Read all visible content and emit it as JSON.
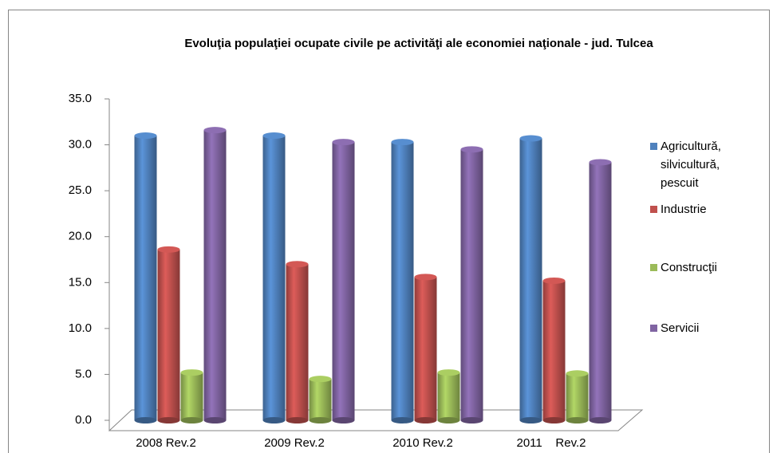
{
  "chart_data": {
    "type": "bar",
    "title": "Evoluţia populaţiei ocupate civile pe activităţi ale economiei naţionale - jud. Tulcea",
    "categories": [
      "2008 Rev.2",
      "2009 Rev.2",
      "2010 Rev.2",
      "2011    Rev.2"
    ],
    "series": [
      {
        "name": "Agricultură, silvicultură, pescuit",
        "color": "#4f81bd",
        "values": [
          31.0,
          31.0,
          30.3,
          30.7
        ]
      },
      {
        "name": "Industrie",
        "color": "#c0504d",
        "values": [
          18.6,
          17.0,
          15.6,
          15.2
        ]
      },
      {
        "name": "Construcţii",
        "color": "#9bbb59",
        "values": [
          5.2,
          4.5,
          5.2,
          5.1
        ]
      },
      {
        "name": "Servicii",
        "color": "#8064a2",
        "values": [
          31.6,
          30.3,
          29.5,
          28.1
        ]
      }
    ],
    "ylim": [
      0,
      35
    ],
    "yticks": [
      {
        "value": 0,
        "label": "0.0"
      },
      {
        "value": 5,
        "label": "5.0"
      },
      {
        "value": 10,
        "label": "10.0"
      },
      {
        "value": 15,
        "label": "15.0"
      },
      {
        "value": 20,
        "label": "20.0"
      },
      {
        "value": 25,
        "label": "25.0"
      },
      {
        "value": 30,
        "label": "30.0"
      },
      {
        "value": 35,
        "label": "35.0"
      }
    ],
    "legend": "right"
  }
}
